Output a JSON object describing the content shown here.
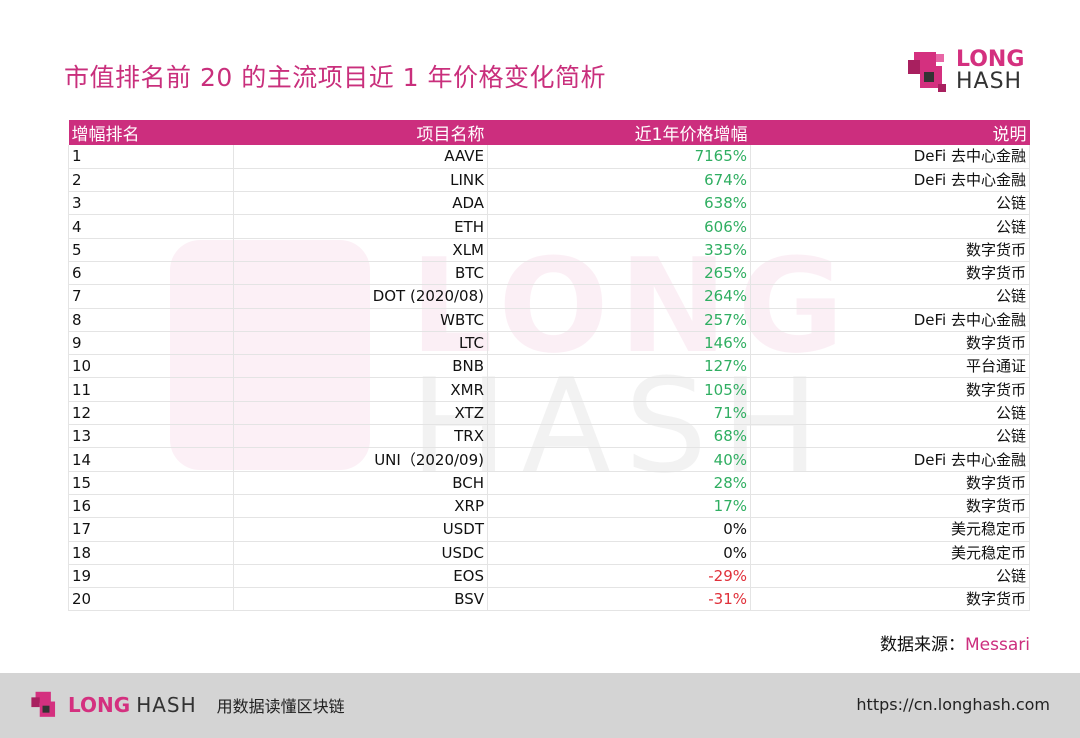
{
  "title": "市值排名前 20 的主流项目近 1 年价格变化简析",
  "logo": {
    "line1": "LONG",
    "line2": "HASH"
  },
  "watermark": {
    "line1": "LONG",
    "line2": "HASH"
  },
  "colors": {
    "brand": "#cc2e7e",
    "positive": "#2fae61",
    "negative": "#e0303a"
  },
  "chart_data": {
    "type": "table",
    "columns": [
      "增幅排名",
      "项目名称",
      "近1年价格增幅",
      "说明"
    ],
    "rows": [
      [
        "1",
        "AAVE",
        "7165%",
        "DeFi 去中心金融"
      ],
      [
        "2",
        "LINK",
        "674%",
        "DeFi 去中心金融"
      ],
      [
        "3",
        "ADA",
        "638%",
        "公链"
      ],
      [
        "4",
        "ETH",
        "606%",
        "公链"
      ],
      [
        "5",
        "XLM",
        "335%",
        "数字货币"
      ],
      [
        "6",
        "BTC",
        "265%",
        "数字货币"
      ],
      [
        "7",
        "DOT (2020/08)",
        "264%",
        "公链"
      ],
      [
        "8",
        "WBTC",
        "257%",
        "DeFi 去中心金融"
      ],
      [
        "9",
        "LTC",
        "146%",
        "数字货币"
      ],
      [
        "10",
        "BNB",
        "127%",
        "平台通证"
      ],
      [
        "11",
        "XMR",
        "105%",
        "数字货币"
      ],
      [
        "12",
        "XTZ",
        "71%",
        "公链"
      ],
      [
        "13",
        "TRX",
        "68%",
        "公链"
      ],
      [
        "14",
        "UNI（2020/09)",
        "40%",
        "DeFi 去中心金融"
      ],
      [
        "15",
        "BCH",
        "28%",
        "数字货币"
      ],
      [
        "16",
        "XRP",
        "17%",
        "数字货币"
      ],
      [
        "17",
        "USDT",
        "0%",
        "美元稳定币"
      ],
      [
        "18",
        "USDC",
        "0%",
        "美元稳定币"
      ],
      [
        "19",
        "EOS",
        "-29%",
        "公链"
      ],
      [
        "20",
        "BSV",
        "-31%",
        "数字货币"
      ]
    ]
  },
  "source": {
    "label": "数据来源：",
    "value": "Messari"
  },
  "footer": {
    "logo_long": "LONG",
    "logo_hash": "HASH",
    "slogan": "用数据读懂区块链",
    "url": "https://cn.longhash.com"
  }
}
